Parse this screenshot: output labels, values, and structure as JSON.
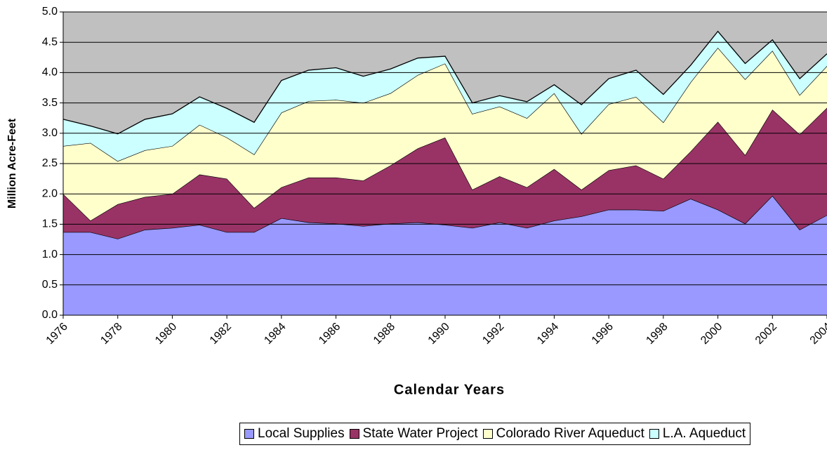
{
  "chart_data": {
    "type": "stacked-area",
    "x_label": "Calendar Years",
    "y_label": "Million Acre-Feet",
    "x": [
      1976,
      1977,
      1978,
      1979,
      1980,
      1981,
      1982,
      1983,
      1984,
      1985,
      1986,
      1987,
      1988,
      1989,
      1990,
      1991,
      1992,
      1993,
      1994,
      1995,
      1996,
      1997,
      1998,
      1999,
      2000,
      2001,
      2002,
      2003,
      2004
    ],
    "xlim": [
      1976,
      2004
    ],
    "xticks": [
      1976,
      1978,
      1980,
      1982,
      1984,
      1986,
      1988,
      1990,
      1992,
      1994,
      1996,
      1998,
      2000,
      2002,
      2004
    ],
    "ylim": [
      0,
      5
    ],
    "yticks": [
      {
        "value": 0,
        "label": "0.0"
      },
      0.5,
      {
        "value": 1,
        "label": "1.0"
      },
      1.5,
      {
        "value": 2,
        "label": "2.0"
      },
      2.5,
      {
        "value": 3,
        "label": "3.0"
      },
      3.5,
      {
        "value": 4,
        "label": "4.0"
      },
      4.5,
      {
        "value": 5,
        "label": "5.0"
      }
    ],
    "grid": true,
    "background": "#c0c0c0",
    "legend": "bottom",
    "series": [
      {
        "name": "Local Supplies",
        "color": "#9999ff",
        "values": [
          1.37,
          1.37,
          1.26,
          1.41,
          1.44,
          1.49,
          1.37,
          1.37,
          1.6,
          1.53,
          1.51,
          1.47,
          1.51,
          1.53,
          1.49,
          1.44,
          1.53,
          1.44,
          1.56,
          1.63,
          1.74,
          1.74,
          1.72,
          1.92,
          1.74,
          1.51,
          1.97,
          1.41,
          1.65
        ]
      },
      {
        "name": "State Water Project",
        "color": "#993366",
        "values": [
          0.63,
          0.19,
          0.57,
          0.54,
          0.56,
          0.83,
          0.88,
          0.4,
          0.51,
          0.74,
          0.76,
          0.75,
          0.96,
          1.22,
          1.44,
          0.63,
          0.76,
          0.67,
          0.85,
          0.44,
          0.65,
          0.73,
          0.53,
          0.78,
          1.45,
          1.13,
          1.42,
          1.57,
          1.77
        ]
      },
      {
        "name": "Colorado River Aqueduct",
        "color": "#ffffcc",
        "values": [
          0.79,
          1.28,
          0.71,
          0.77,
          0.79,
          0.82,
          0.68,
          0.88,
          1.23,
          1.26,
          1.28,
          1.28,
          1.19,
          1.21,
          1.22,
          1.25,
          1.15,
          1.14,
          1.25,
          0.92,
          1.09,
          1.13,
          0.93,
          1.14,
          1.22,
          1.25,
          0.97,
          0.65,
          0.69
        ]
      },
      {
        "name": "L.A. Aqueduct",
        "color": "#ccffff",
        "values": [
          0.44,
          0.28,
          0.45,
          0.51,
          0.53,
          0.46,
          0.48,
          0.53,
          0.53,
          0.51,
          0.53,
          0.44,
          0.4,
          0.28,
          0.12,
          0.18,
          0.18,
          0.27,
          0.14,
          0.48,
          0.42,
          0.44,
          0.46,
          0.28,
          0.27,
          0.26,
          0.18,
          0.27,
          0.2
        ]
      }
    ]
  }
}
